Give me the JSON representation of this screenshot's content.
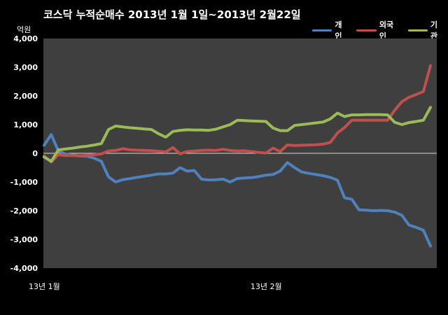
{
  "chart_data": {
    "type": "line",
    "title": "코스닥  누적순매수 2013년 1월 1일~2013년 2월22일",
    "ylabel": "억원",
    "ylim": [
      -4000,
      4000
    ],
    "y_ticks": [
      4000,
      3000,
      2000,
      1000,
      0,
      -1000,
      -2000,
      -3000,
      -4000
    ],
    "y_tick_labels": [
      "4,000",
      "3,000",
      "2,000",
      "1,000",
      "0",
      "-1,000",
      "-2,000",
      "-3,000",
      "-4,000"
    ],
    "x_tick_labels": [
      {
        "label": "13년 1월",
        "index": 0
      },
      {
        "label": "13년 2월",
        "index": 31
      }
    ],
    "legend_placement": "top-right",
    "grid": false,
    "background": "#000000",
    "plot_background": "#3f3f3f",
    "x_count": 55,
    "series": [
      {
        "name": "개인",
        "color": "#4f81bd",
        "values": [
          280,
          650,
          80,
          -30,
          -60,
          -90,
          -100,
          -170,
          -280,
          -820,
          -1000,
          -920,
          -880,
          -840,
          -800,
          -760,
          -720,
          -720,
          -690,
          -500,
          -620,
          -600,
          -900,
          -930,
          -920,
          -900,
          -1000,
          -880,
          -860,
          -850,
          -810,
          -760,
          -740,
          -620,
          -320,
          -500,
          -650,
          -700,
          -740,
          -780,
          -840,
          -940,
          -1550,
          -1600,
          -1970,
          -1980,
          -2000,
          -1990,
          -2000,
          -2050,
          -2160,
          -2500,
          -2580,
          -2680,
          -3230
        ]
      },
      {
        "name": "외국인",
        "color": "#c0504d",
        "values": [
          -100,
          -300,
          -50,
          -80,
          -80,
          -90,
          -70,
          -50,
          -20,
          80,
          100,
          160,
          120,
          110,
          100,
          90,
          70,
          50,
          200,
          -20,
          60,
          80,
          100,
          110,
          100,
          140,
          100,
          80,
          90,
          60,
          30,
          10,
          180,
          60,
          290,
          270,
          280,
          290,
          300,
          320,
          380,
          710,
          900,
          1150,
          1150,
          1150,
          1150,
          1150,
          1150,
          1500,
          1800,
          1950,
          2050,
          2150,
          3050
        ]
      },
      {
        "name": "기관",
        "color": "#9bbb59",
        "values": [
          -130,
          -280,
          120,
          150,
          180,
          220,
          250,
          290,
          340,
          830,
          950,
          920,
          890,
          870,
          850,
          830,
          680,
          560,
          760,
          800,
          820,
          810,
          810,
          800,
          840,
          920,
          1000,
          1150,
          1140,
          1130,
          1120,
          1110,
          880,
          790,
          790,
          970,
          1000,
          1030,
          1060,
          1090,
          1200,
          1400,
          1280,
          1340,
          1340,
          1350,
          1350,
          1350,
          1340,
          1080,
          1000,
          1070,
          1110,
          1150,
          1600
        ]
      }
    ]
  }
}
